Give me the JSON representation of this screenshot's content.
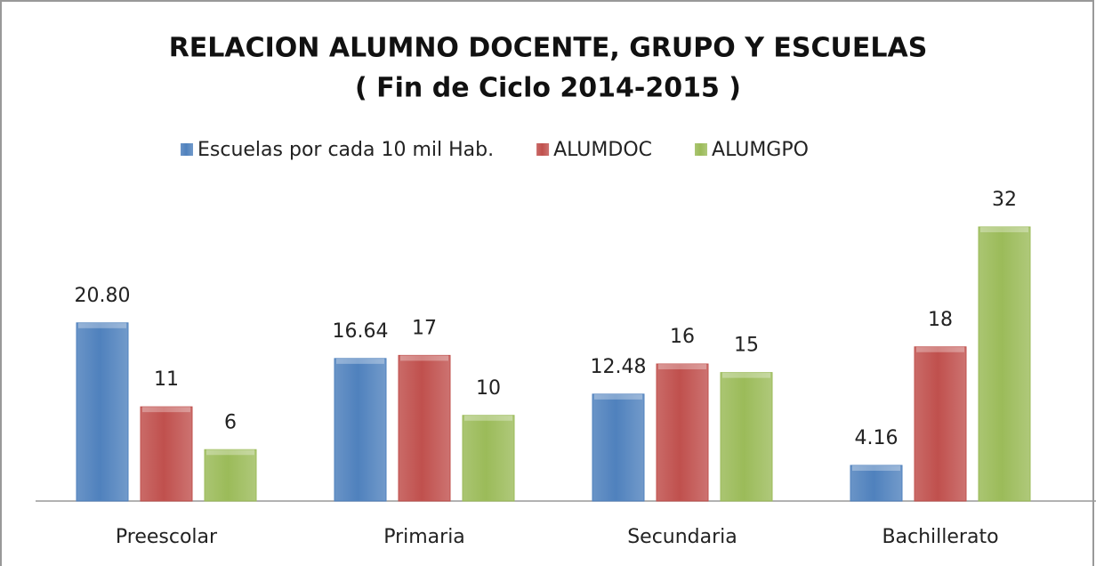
{
  "chart_data": {
    "type": "bar",
    "title": "RELACION ALUMNO DOCENTE, GRUPO Y ESCUELAS",
    "subtitle": "( Fin de Ciclo 2014-2015 )",
    "categories": [
      "Preescolar",
      "Primaria",
      "Secundaria",
      "Bachillerato"
    ],
    "series": [
      {
        "name": "Escuelas por cada 10 mil Hab.",
        "color": "#4f81bd",
        "values": [
          20.8,
          16.64,
          12.48,
          4.16
        ],
        "value_labels": [
          "20.80",
          "16.64",
          "12.48",
          "4.16"
        ]
      },
      {
        "name": "ALUMDOC",
        "color": "#c0504d",
        "values": [
          11,
          17,
          16,
          18
        ]
      },
      {
        "name": "ALUMGPO",
        "color": "#9bbb59",
        "values": [
          6,
          10,
          15,
          32
        ]
      }
    ],
    "legend": "top"
  }
}
